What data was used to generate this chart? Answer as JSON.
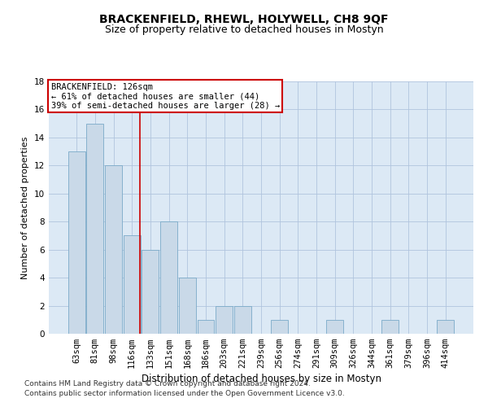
{
  "title": "BRACKENFIELD, RHEWL, HOLYWELL, CH8 9QF",
  "subtitle": "Size of property relative to detached houses in Mostyn",
  "xlabel": "Distribution of detached houses by size in Mostyn",
  "ylabel": "Number of detached properties",
  "footer1": "Contains HM Land Registry data © Crown copyright and database right 2024.",
  "footer2": "Contains public sector information licensed under the Open Government Licence v3.0.",
  "categories": [
    "63sqm",
    "81sqm",
    "98sqm",
    "116sqm",
    "133sqm",
    "151sqm",
    "168sqm",
    "186sqm",
    "203sqm",
    "221sqm",
    "239sqm",
    "256sqm",
    "274sqm",
    "291sqm",
    "309sqm",
    "326sqm",
    "344sqm",
    "361sqm",
    "379sqm",
    "396sqm",
    "414sqm"
  ],
  "values": [
    13,
    15,
    12,
    7,
    6,
    8,
    4,
    1,
    2,
    2,
    0,
    1,
    0,
    0,
    1,
    0,
    0,
    1,
    0,
    0,
    1
  ],
  "bar_color": "#c9d9e8",
  "bar_edge_color": "#7aaac8",
  "grid_color": "#b0c4de",
  "background_color": "#dce9f5",
  "annotation_box_text": "BRACKENFIELD: 126sqm\n← 61% of detached houses are smaller (44)\n39% of semi-detached houses are larger (28) →",
  "annotation_box_color": "#cc0000",
  "vline_x_index": 3.42,
  "vline_color": "#cc0000",
  "ylim": [
    0,
    18
  ],
  "yticks": [
    0,
    2,
    4,
    6,
    8,
    10,
    12,
    14,
    16,
    18
  ],
  "title_fontsize": 10,
  "subtitle_fontsize": 9,
  "xlabel_fontsize": 8.5,
  "ylabel_fontsize": 8,
  "tick_fontsize": 7.5,
  "annotation_fontsize": 7.5,
  "footer_fontsize": 6.5
}
